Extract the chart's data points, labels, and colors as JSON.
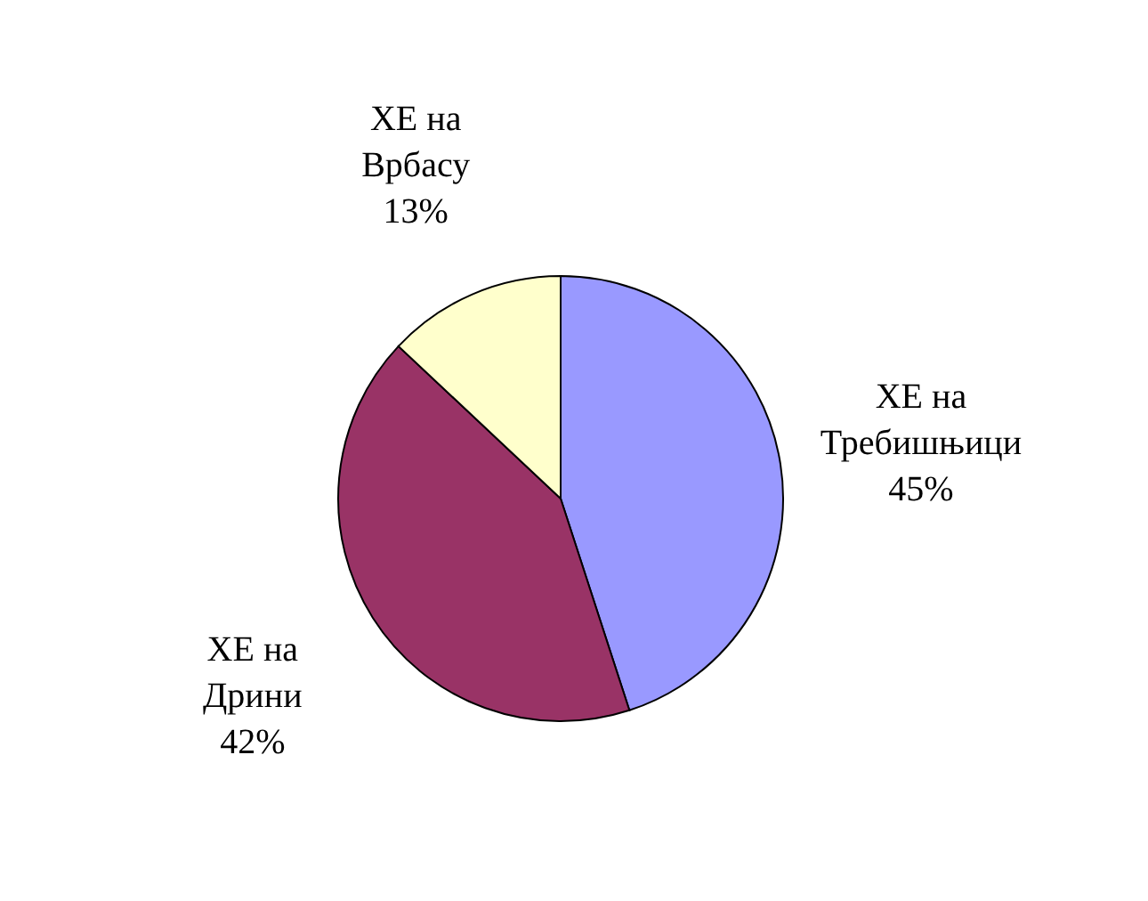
{
  "chart_data": {
    "type": "pie",
    "categories": [
      "ХЕ на Требишњици",
      "ХЕ на Дрини",
      "ХЕ на Врбасу"
    ],
    "values": [
      45,
      42,
      13
    ],
    "colors": [
      "#9999ff",
      "#993366",
      "#ffffcc"
    ],
    "value_labels": [
      "45%",
      "42%",
      "13%"
    ]
  }
}
